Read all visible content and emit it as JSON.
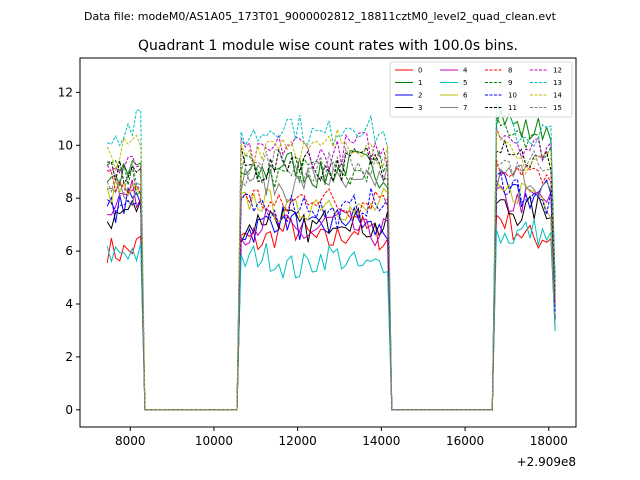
{
  "figure": {
    "suptitle": "Data file: modeM0/AS1A05_173T01_9000002812_18811cztM0_level2_quad_clean.evt"
  },
  "chart_data": {
    "type": "line",
    "title": "Quadrant 1 module wise count rates with 100.0s bins.",
    "xlabel": "",
    "ylabel": "",
    "x_offset_label": "+2.909e8",
    "xlim": [
      6800,
      18650
    ],
    "ylim": [
      -0.65,
      13.3
    ],
    "xticks": [
      8000,
      10000,
      12000,
      14000,
      16000,
      18000
    ],
    "xtick_labels": [
      "8000",
      "10000",
      "12000",
      "14000",
      "16000",
      "18000"
    ],
    "yticks": [
      0,
      2,
      4,
      6,
      8,
      10,
      12
    ],
    "ytick_labels": [
      "0",
      "2",
      "4",
      "6",
      "8",
      "10",
      "12"
    ],
    "grid": false,
    "legend_position": "top-right",
    "segments": [
      {
        "start": 7450,
        "end": 8250
      },
      {
        "start": 10650,
        "end": 14150
      },
      {
        "start": 16750,
        "end": 18150
      }
    ],
    "series": [
      {
        "name": "0",
        "color": "#ff0000",
        "dash": "solid",
        "levels": [
          6.2,
          6.6,
          6.8
        ]
      },
      {
        "name": "1",
        "color": "#008000",
        "dash": "solid",
        "levels": [
          9.0,
          9.1,
          10.8
        ]
      },
      {
        "name": "2",
        "color": "#0000ff",
        "dash": "solid",
        "levels": [
          7.8,
          7.0,
          8.2
        ]
      },
      {
        "name": "3",
        "color": "#000000",
        "dash": "solid",
        "levels": [
          7.4,
          7.1,
          7.6
        ]
      },
      {
        "name": "4",
        "color": "#bf00bf",
        "dash": "solid",
        "levels": [
          7.9,
          6.9,
          7.9
        ]
      },
      {
        "name": "5",
        "color": "#00bfbf",
        "dash": "solid",
        "levels": [
          5.8,
          5.6,
          6.6
        ]
      },
      {
        "name": "6",
        "color": "#bfbf00",
        "dash": "solid",
        "levels": [
          8.0,
          7.7,
          8.1
        ]
      },
      {
        "name": "7",
        "color": "#808080",
        "dash": "solid",
        "levels": [
          8.3,
          8.6,
          8.6
        ]
      },
      {
        "name": "8",
        "color": "#ff0000",
        "dash": "dashed",
        "levels": [
          8.4,
          7.9,
          8.9
        ]
      },
      {
        "name": "9",
        "color": "#008000",
        "dash": "dashed",
        "levels": [
          8.9,
          9.0,
          10.3
        ]
      },
      {
        "name": "10",
        "color": "#0000ff",
        "dash": "dashed",
        "levels": [
          8.0,
          7.6,
          8.2
        ]
      },
      {
        "name": "11",
        "color": "#000000",
        "dash": "dashed",
        "levels": [
          9.2,
          9.3,
          9.7
        ]
      },
      {
        "name": "12",
        "color": "#bf00bf",
        "dash": "dashed",
        "levels": [
          9.3,
          9.8,
          10.2
        ]
      },
      {
        "name": "13",
        "color": "#00bfbf",
        "dash": "dashed",
        "levels": [
          10.7,
          10.6,
          10.6
        ]
      },
      {
        "name": "14",
        "color": "#bfbf00",
        "dash": "dashed",
        "levels": [
          9.8,
          10.0,
          9.6
        ]
      },
      {
        "name": "15",
        "color": "#808080",
        "dash": "dashed",
        "levels": [
          8.6,
          9.2,
          9.4
        ]
      }
    ]
  }
}
